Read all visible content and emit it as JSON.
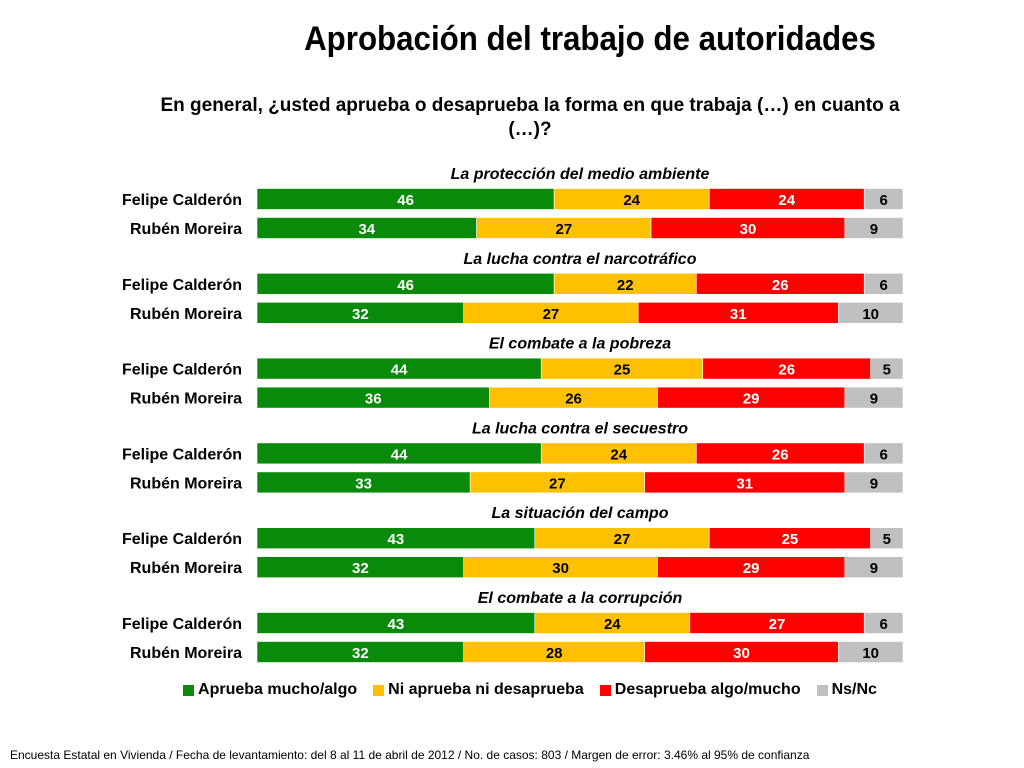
{
  "chart_data": {
    "type": "bar",
    "stacked": true,
    "orientation": "horizontal",
    "title": "Aprobación del trabajo de autoridades",
    "subtitle": "En general, ¿usted aprueba o desaprueba la forma en que trabaja (…) en cuanto a (…)?",
    "legend_position": "bottom",
    "grid": false,
    "xlim": [
      0,
      100
    ],
    "series_meta": [
      {
        "name": "Aprueba mucho/algo",
        "color": "#0a8a0a",
        "text_color": "#ffffff"
      },
      {
        "name": "Ni aprueba ni desaprueba",
        "color": "#ffc000",
        "text_color": "#000000"
      },
      {
        "name": "Desaprueba algo/mucho",
        "color": "#ff0000",
        "text_color": "#ffffff"
      },
      {
        "name": "Ns/Nc",
        "color": "#c0c0c0",
        "text_color": "#000000"
      }
    ],
    "groups": [
      {
        "title": "La protección del medio ambiente",
        "rows": [
          {
            "label": "Felipe Calderón",
            "values": [
              46,
              24,
              24,
              6
            ]
          },
          {
            "label": "Rubén Moreira",
            "values": [
              34,
              27,
              30,
              9
            ]
          }
        ]
      },
      {
        "title": "La lucha contra el narcotráfico",
        "rows": [
          {
            "label": "Felipe Calderón",
            "values": [
              46,
              22,
              26,
              6
            ]
          },
          {
            "label": "Rubén Moreira",
            "values": [
              32,
              27,
              31,
              10
            ]
          }
        ]
      },
      {
        "title": "El combate a la pobreza",
        "rows": [
          {
            "label": "Felipe Calderón",
            "values": [
              44,
              25,
              26,
              5
            ]
          },
          {
            "label": "Rubén Moreira",
            "values": [
              36,
              26,
              29,
              9
            ]
          }
        ]
      },
      {
        "title": "La lucha contra el secuestro",
        "rows": [
          {
            "label": "Felipe Calderón",
            "values": [
              44,
              24,
              26,
              6
            ]
          },
          {
            "label": "Rubén Moreira",
            "values": [
              33,
              27,
              31,
              9
            ]
          }
        ]
      },
      {
        "title": "La situación del campo",
        "rows": [
          {
            "label": "Felipe Calderón",
            "values": [
              43,
              27,
              25,
              5
            ]
          },
          {
            "label": "Rubén Moreira",
            "values": [
              32,
              30,
              29,
              9
            ]
          }
        ]
      },
      {
        "title": "El combate a la corrupción",
        "rows": [
          {
            "label": "Felipe Calderón",
            "values": [
              43,
              24,
              27,
              6
            ]
          },
          {
            "label": "Rubén Moreira",
            "values": [
              32,
              28,
              30,
              10
            ]
          }
        ]
      }
    ]
  },
  "footnote": "Encuesta Estatal en Vivienda / Fecha de levantamiento: del  8 al 11 de abril de 2012 / No. de casos: 803 / Margen de error: 3.46% al 95% de confianza"
}
